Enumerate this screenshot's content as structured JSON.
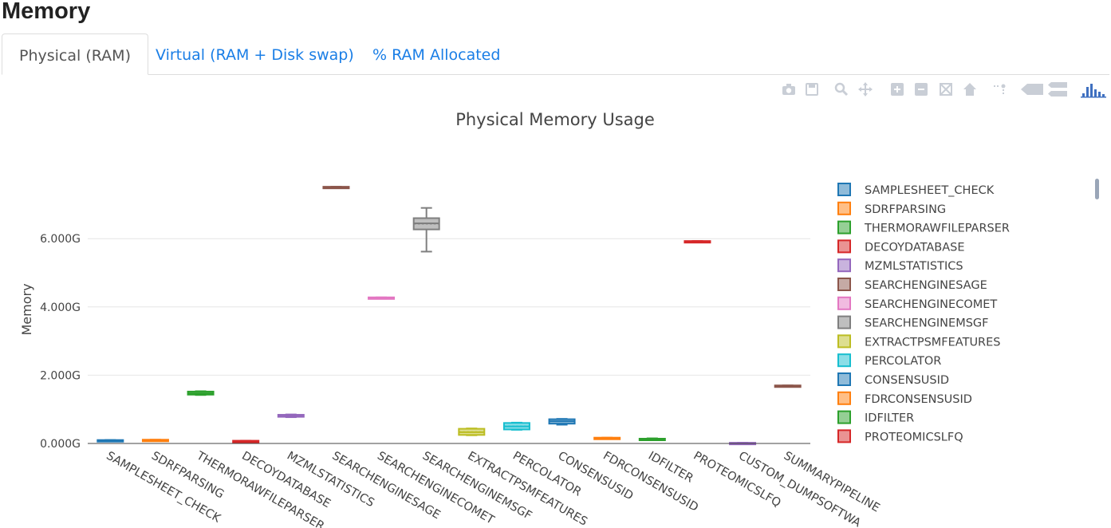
{
  "page": {
    "title": "Memory"
  },
  "tabs": [
    {
      "label": "Physical (RAM)",
      "active": true
    },
    {
      "label": "Virtual (RAM + Disk swap)",
      "active": false
    },
    {
      "label": "% RAM Allocated",
      "active": false
    }
  ],
  "modebar": {
    "icons": [
      "camera-icon",
      "save-icon",
      "zoom-icon",
      "pan-icon",
      "zoom-in-icon",
      "zoom-out-icon",
      "autoscale-icon",
      "reset-axes-icon",
      "spike-lines-icon",
      "hover-closest-icon",
      "hover-compare-icon",
      "plotly-logo-icon"
    ],
    "color": "#c9ced6"
  },
  "chart_data": {
    "type": "box",
    "title": "Physical Memory Usage",
    "xlabel": "",
    "ylabel": "Memory",
    "ylim": [
      -0.2,
      8.0
    ],
    "yticks": [
      0,
      2,
      4,
      6
    ],
    "ytick_labels": [
      "0.000G",
      "2.000G",
      "4.000G",
      "6.000G"
    ],
    "unit": "G",
    "grid": true,
    "legend_position": "right",
    "categories": [
      "SAMPLESHEET_CHECK",
      "SDRFPARSING",
      "THERMORAWFILEPARSER",
      "DECOYDATABASE",
      "MZMLSTATISTICS",
      "SEARCHENGINESAGE",
      "SEARCHENGINECOMET",
      "SEARCHENGINEMSGF",
      "EXTRACTPSMFEATURES",
      "PERCOLATOR",
      "CONSENSUSID",
      "FDRCONSENSUSID",
      "IDFILTER",
      "PROTEOMICSLFQ",
      "CUSTOM_DUMPSOFTWAREVERSIONS",
      "SUMMARYPIPELINE"
    ],
    "tick_labels": [
      "SAMPLESHEET_CHECK",
      "SDRFPARSING",
      "THERMORAWFILEPARSER",
      "DECOYDATABASE",
      "MZMLSTATISTICS",
      "SEARCHENGINESAGE",
      "SEARCHENGINECOMET",
      "SEARCHENGINEMSGF",
      "EXTRACTPSMFEATURES",
      "PERCOLATOR",
      "CONSENSUSID",
      "FDRCONSENSUSID",
      "IDFILTER",
      "PROTEOMICSLFQ",
      "CUSTOM_DUMPSOFTWA",
      "SUMMARYPIPELINE"
    ],
    "series": [
      {
        "name": "SAMPLESHEET_CHECK",
        "color": "#1f77b4",
        "min": 0.08,
        "q1": 0.08,
        "median": 0.09,
        "q3": 0.1,
        "max": 0.1
      },
      {
        "name": "SDRFPARSING",
        "color": "#ff7f0e",
        "min": 0.09,
        "q1": 0.09,
        "median": 0.1,
        "q3": 0.11,
        "max": 0.11
      },
      {
        "name": "THERMORAWFILEPARSER",
        "color": "#2ca02c",
        "min": 1.42,
        "q1": 1.43,
        "median": 1.47,
        "q3": 1.52,
        "max": 1.53
      },
      {
        "name": "DECOYDATABASE",
        "color": "#d62728",
        "min": 0.05,
        "q1": 0.06,
        "median": 0.07,
        "q3": 0.08,
        "max": 0.08
      },
      {
        "name": "MZMLSTATISTICS",
        "color": "#9467bd",
        "min": 0.77,
        "q1": 0.78,
        "median": 0.81,
        "q3": 0.84,
        "max": 0.85
      },
      {
        "name": "SEARCHENGINESAGE",
        "color": "#8c564b",
        "min": 7.48,
        "q1": 7.48,
        "median": 7.5,
        "q3": 7.52,
        "max": 7.52
      },
      {
        "name": "SEARCHENGINECOMET",
        "color": "#e377c2",
        "min": 4.24,
        "q1": 4.24,
        "median": 4.26,
        "q3": 4.28,
        "max": 4.28
      },
      {
        "name": "SEARCHENGINEMSGF",
        "color": "#7f7f7f",
        "min": 5.62,
        "q1": 6.27,
        "median": 6.45,
        "q3": 6.6,
        "max": 6.9
      },
      {
        "name": "EXTRACTPSMFEATURES",
        "color": "#bcbd22",
        "min": 0.24,
        "q1": 0.25,
        "median": 0.33,
        "q3": 0.43,
        "max": 0.44
      },
      {
        "name": "PERCOLATOR",
        "color": "#17becf",
        "min": 0.4,
        "q1": 0.41,
        "median": 0.5,
        "q3": 0.6,
        "max": 0.61
      },
      {
        "name": "CONSENSUSID",
        "color": "#1f77b4",
        "min": 0.55,
        "q1": 0.58,
        "median": 0.65,
        "q3": 0.71,
        "max": 0.72
      },
      {
        "name": "FDRCONSENSUSID",
        "color": "#ff7f0e",
        "min": 0.13,
        "q1": 0.14,
        "median": 0.15,
        "q3": 0.17,
        "max": 0.17
      },
      {
        "name": "IDFILTER",
        "color": "#2ca02c",
        "min": 0.11,
        "q1": 0.11,
        "median": 0.13,
        "q3": 0.14,
        "max": 0.15
      },
      {
        "name": "PROTEOMICSLFQ",
        "color": "#d62728",
        "min": 5.89,
        "q1": 5.89,
        "median": 5.91,
        "q3": 5.93,
        "max": 5.93
      },
      {
        "name": "CUSTOM_DUMPSOFTWAREVERSIONS",
        "color": "#9467bd",
        "min": 0.0,
        "q1": 0.0,
        "median": 0.01,
        "q3": 0.02,
        "max": 0.02
      },
      {
        "name": "SUMMARYPIPELINE",
        "color": "#8c564b",
        "min": 1.66,
        "q1": 1.66,
        "median": 1.68,
        "q3": 1.7,
        "max": 1.7
      }
    ],
    "legend_entries": [
      "SAMPLESHEET_CHECK",
      "SDRFPARSING",
      "THERMORAWFILEPARSER",
      "DECOYDATABASE",
      "MZMLSTATISTICS",
      "SEARCHENGINESAGE",
      "SEARCHENGINECOMET",
      "SEARCHENGINEMSGF",
      "EXTRACTPSMFEATURES",
      "PERCOLATOR",
      "CONSENSUSID",
      "FDRCONSENSUSID",
      "IDFILTER",
      "PROTEOMICSLFQ"
    ]
  }
}
